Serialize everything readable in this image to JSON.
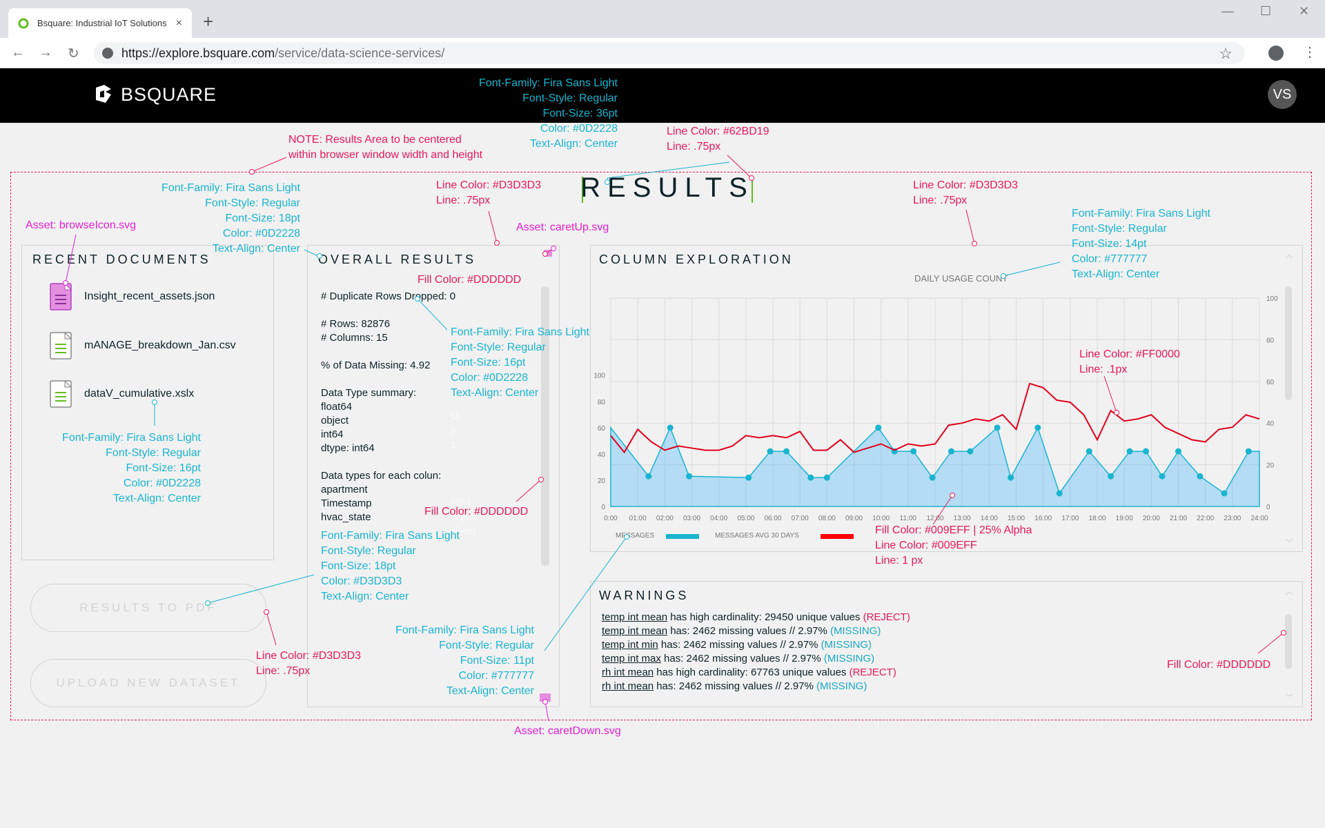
{
  "browser": {
    "tab_title": "Bsquare: Industrial IoT Solutions",
    "tab_close": "×",
    "new_tab": "+",
    "url_host": "https://explore.bsquare.com",
    "url_path": "/service/data-science-services/",
    "nav_back": "←",
    "nav_forward": "→",
    "nav_reload": "↻",
    "star": "☆",
    "menu": "⋮",
    "win_min": "—",
    "win_max": "☐",
    "win_close": "✕"
  },
  "header": {
    "logo_text": "BSQUARE",
    "avatar_initials": "VS"
  },
  "results": {
    "title": "RESULTS"
  },
  "recent_documents": {
    "title": "RECENT DOCUMENTS",
    "files": [
      "Insight_recent_assets.json",
      "mANAGE_breakdown_Jan.csv",
      "dataV_cumulative.xslx"
    ]
  },
  "buttons": {
    "results_to_pdf": "RESULTS TO PDF",
    "upload_new_dataset": "UPLOAD NEW DATASET"
  },
  "overall_results": {
    "title": "OVERALL RESULTS",
    "lines": "# Duplicate Rows Dropped: 0\n\n# Rows: 82876\n# Columns: 15\n\n% of Data Missing: 4.92\n\nData Type summary:\nfloat64\nobject\nint64\ndtype: int64\n\nData types for each colun:\napartment\nTimestamp\nhvac_state",
    "faint_values": [
      "11",
      "3",
      "1",
      "int64",
      "object",
      "object"
    ]
  },
  "column_exploration": {
    "title": "COLUMN EXPLORATION",
    "chart_title": "DAILY USAGE COUNT",
    "legend_messages": "MESSAGES",
    "legend_avg": "MESSAGES AVG 30 DAYS"
  },
  "chart_data": {
    "type": "area",
    "title": "DAILY USAGE COUNT",
    "x": [
      "0:00",
      "01:00",
      "02:00",
      "03:00",
      "04:00",
      "05:00",
      "06:00",
      "07:00",
      "08:00",
      "09:00",
      "10:00",
      "11:00",
      "12:00",
      "13:00",
      "14:00",
      "15:00",
      "16:00",
      "17:00",
      "18:00",
      "19:00",
      "20:00",
      "21:00",
      "22:00",
      "23:00",
      "24:00"
    ],
    "left_axis": {
      "ticks": [
        0,
        20,
        40,
        60,
        80,
        100
      ],
      "ylim": [
        0,
        100
      ]
    },
    "right_axis": {
      "ticks": [
        0,
        20,
        40,
        60,
        80,
        100
      ],
      "ylim": [
        0,
        100
      ]
    },
    "series": [
      {
        "name": "MESSAGES",
        "color": "#009EFF",
        "x": [
          0,
          1.4,
          2.2,
          2.9,
          5.1,
          5.9,
          6.5,
          7.4,
          8.0,
          9.9,
          10.5,
          11.2,
          11.9,
          12.6,
          13.3,
          14.3,
          14.8,
          15.8,
          16.6,
          17.7,
          18.5,
          19.2,
          19.8,
          20.4,
          21.0,
          21.8,
          22.7,
          23.6,
          24
        ],
        "y": [
          60,
          23,
          60,
          23,
          22,
          42,
          42,
          22,
          22,
          60,
          42,
          42,
          22,
          42,
          42,
          60,
          22,
          60,
          10,
          42,
          23,
          42,
          42,
          23,
          42,
          23,
          10,
          42,
          42
        ]
      },
      {
        "name": "MESSAGES AVG 30 DAYS",
        "color": "#FF0000",
        "x": [
          0,
          0.5,
          1.0,
          1.5,
          2.0,
          2.5,
          3.0,
          3.5,
          4.0,
          4.5,
          5.0,
          5.5,
          6.0,
          6.5,
          7.0,
          7.5,
          8.0,
          8.5,
          9.0,
          9.5,
          10.0,
          10.5,
          11.0,
          11.5,
          12.0,
          12.5,
          13.0,
          13.5,
          14.0,
          14.5,
          15.0,
          15.5,
          16.0,
          16.5,
          17.0,
          17.5,
          18.0,
          18.5,
          19.0,
          19.5,
          20.0,
          20.5,
          21.0,
          21.5,
          22.0,
          22.5,
          23.0,
          23.5,
          24.0
        ],
        "y": [
          34,
          26,
          37,
          31,
          27,
          29,
          28,
          27,
          27,
          29,
          34,
          33,
          34,
          33,
          36,
          27,
          27,
          32,
          26,
          28,
          30,
          27,
          30,
          29,
          30,
          39,
          40,
          42,
          41,
          44,
          37,
          59,
          57,
          51,
          50,
          44,
          32,
          46,
          41,
          42,
          44,
          38,
          35,
          32,
          31,
          37,
          38,
          44,
          42
        ]
      }
    ],
    "xlabel": "",
    "ylabel": "",
    "grid": true,
    "legend": "bottom-left"
  },
  "warnings": {
    "title": "WARNINGS",
    "items": [
      {
        "col": "temp int mean",
        "text": " has high cardinality: 29450 unique values ",
        "tag": "(REJECT)",
        "kind": "reject"
      },
      {
        "col": "temp int mean",
        "text": " has: 2462 missing values // 2.97% ",
        "tag": "(MISSING)",
        "kind": "missing"
      },
      {
        "col": "temp int min",
        "text": " has: 2462 missing values // 2.97% ",
        "tag": "(MISSING)",
        "kind": "missing"
      },
      {
        "col": "temp int max",
        "text": " has: 2462 missing values // 2.97% ",
        "tag": "(MISSING)",
        "kind": "missing"
      },
      {
        "col": "rh int mean",
        "text": " has high cardinality: 67763 unique values ",
        "tag": "(REJECT)",
        "kind": "reject"
      },
      {
        "col": "rh int mean",
        "text": " has: 2462 missing values // 2.97% ",
        "tag": "(MISSING)",
        "kind": "missing"
      }
    ]
  },
  "annotations": {
    "header_font": "Font-Family: Fira Sans Light\nFont-Style: Regular\nFont-Size: 36pt\nColor: #0D2228\nText-Align: Center",
    "note": "NOTE: Results Area to be centered\nwithin browser window width and height",
    "title_line": "Line Color: #62BD19\nLine: .75px",
    "panel_font": "Font-Family: Fira Sans Light\nFont-Style: Regular\nFont-Size: 18pt\nColor: #0D2228\nText-Align: Center",
    "browse_asset": "Asset: browseIcon.svg",
    "line_d3_a": "Line Color: #D3D3D3\nLine: .75px",
    "caret_up": "Asset: caretUp.svg",
    "fill_ddd_a": "Fill Color: #DDDDDD",
    "line_d3_b": "Line Color: #D3D3D3\nLine: .75px",
    "chart_title_font": "Font-Family: Fira Sans Light\nFont-Style: Regular\nFont-Size: 14pt\nColor: #777777\nText-Align: Center",
    "overall_font": "Font-Family: Fira Sans Light\nFont-Style: Regular\nFont-Size: 16pt\nColor: #0D2228\nText-Align: Center",
    "red_line": "Line Color: #FF0000\nLine: .1px",
    "docs_font": "Font-Family: Fira Sans Light\nFont-Style: Regular\nFont-Size: 16pt\nColor: #0D2228\nText-Align: Center",
    "fill_ddd_b": "Fill Color: #DDDDDD",
    "button_font": "Font-Family: Fira Sans Light\nFont-Style: Regular\nFont-Size: 18pt\nColor: #D3D3D3\nText-Align: Center",
    "area_fill": "Fill Color: #009EFF | 25% Alpha\nLine Color: #009EFF\nLine: 1 px",
    "line_d3_c": "Line Color: #D3D3D3\nLine: .75px",
    "legend_font": "Font-Family: Fira Sans Light\nFont-Style: Regular\nFont-Size: 11pt\nColor: #777777\nText-Align: Center",
    "fill_ddd_c": "Fill Color: #DDDDDD",
    "caret_down": "Asset: caretDown.svg"
  }
}
